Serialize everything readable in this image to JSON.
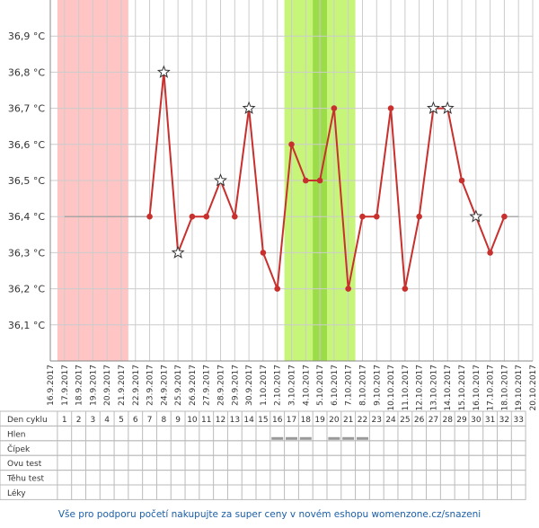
{
  "chart_data": {
    "type": "line",
    "categories": [
      "16.9.2017",
      "17.9.2017",
      "18.9.2017",
      "19.9.2017",
      "20.9.2017",
      "21.9.2017",
      "22.9.2017",
      "23.9.2017",
      "24.9.2017",
      "25.9.2017",
      "26.9.2017",
      "27.9.2017",
      "28.9.2017",
      "29.9.2017",
      "30.9.2017",
      "1.10.2017",
      "2.10.2017",
      "3.10.2017",
      "4.10.2017",
      "5.10.2017",
      "6.10.2017",
      "7.10.2017",
      "8.10.2017",
      "9.10.2017",
      "10.10.2017",
      "11.10.2017",
      "12.10.2017",
      "13.10.2017",
      "14.10.2017",
      "15.10.2017",
      "16.10.2017",
      "17.10.2017",
      "18.10.2017",
      "19.10.2017",
      "20.10.2017"
    ],
    "series": [
      {
        "color": "#c8302e",
        "values": [
          null,
          36.4,
          36.4,
          36.4,
          36.4,
          36.4,
          36.4,
          36.4,
          36.8,
          36.3,
          36.4,
          36.4,
          36.5,
          36.4,
          36.7,
          36.3,
          36.2,
          36.6,
          36.5,
          36.5,
          36.7,
          36.2,
          36.4,
          36.4,
          36.7,
          36.2,
          36.4,
          36.7,
          36.7,
          36.5,
          36.4,
          36.3,
          36.4,
          36.4,
          null
        ],
        "markers": [
          "none",
          "none",
          "none",
          "none",
          "none",
          "none",
          "none",
          "dot",
          "star",
          "star",
          "dot",
          "dot",
          "star",
          "dot",
          "star",
          "dot",
          "dot",
          "dot",
          "dot",
          "dot",
          "dot",
          "dot",
          "dot",
          "dot",
          "dot",
          "dot",
          "dot",
          "star",
          "star",
          "dot",
          "star",
          "dot",
          "dot",
          "none",
          "none"
        ]
      }
    ],
    "ylim": [
      36.0,
      37.0
    ],
    "yticks": [
      {
        "value": 36.1,
        "label": "36,1 °C"
      },
      {
        "value": 36.2,
        "label": "36,2 °C"
      },
      {
        "value": 36.3,
        "label": "36,3 °C"
      },
      {
        "value": 36.4,
        "label": "36,4 °C"
      },
      {
        "value": 36.5,
        "label": "36,5 °C"
      },
      {
        "value": 36.6,
        "label": "36,6 °C"
      },
      {
        "value": 36.7,
        "label": "36,7 °C"
      },
      {
        "value": 36.8,
        "label": "36,8 °C"
      },
      {
        "value": 36.9,
        "label": "36,9 °C"
      }
    ],
    "grid": true,
    "bands": [
      {
        "from": "17.9.2017",
        "to": "21.9.2017",
        "color": "#ffc4c4"
      },
      {
        "from": "3.10.2017",
        "to": "7.10.2017",
        "color": "#c6f57a"
      },
      {
        "from": "5.10.2017",
        "to": "5.10.2017",
        "color": "#9cdc48"
      }
    ]
  },
  "table": {
    "cycle_start": "17.9.2017",
    "row_labels": [
      "Den cyklu",
      "Hlen",
      "Čípek",
      "Ovu test",
      "Těhu test",
      "Léky"
    ],
    "cycle_days": [
      1,
      2,
      3,
      4,
      5,
      6,
      7,
      8,
      9,
      10,
      11,
      12,
      13,
      14,
      15,
      16,
      17,
      18,
      19,
      20,
      21,
      22,
      23,
      24,
      25,
      26,
      27,
      28,
      29,
      30,
      31,
      32,
      33
    ],
    "hlen_days": [
      16,
      17,
      18,
      20,
      21,
      22
    ]
  },
  "footer": "Vše pro podporu početí nakupujte za super ceny v novém eshopu womenzone.cz/snazeni"
}
